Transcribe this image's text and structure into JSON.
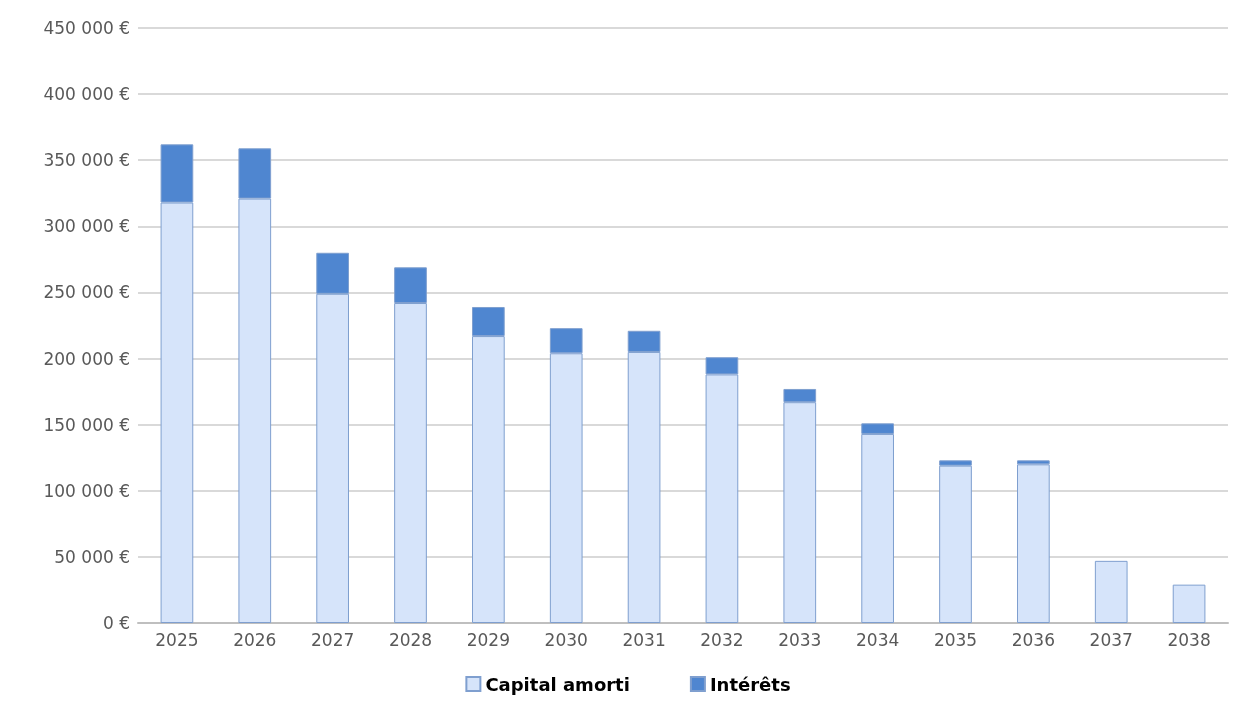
{
  "chart_data": {
    "type": "bar",
    "stacked": true,
    "categories": [
      "2025",
      "2026",
      "2027",
      "2028",
      "2029",
      "2030",
      "2031",
      "2032",
      "2033",
      "2034",
      "2035",
      "2036",
      "2037",
      "2038"
    ],
    "series": [
      {
        "name": "Capital amorti",
        "color": "#d6e4fa",
        "values": [
          318000,
          321000,
          249000,
          242000,
          217000,
          204000,
          205000,
          188000,
          167000,
          143000,
          119000,
          120000,
          47000,
          29000
        ]
      },
      {
        "name": "Intérêts",
        "color": "#4f86d0",
        "values": [
          44000,
          38000,
          31000,
          27000,
          22000,
          19000,
          16000,
          13000,
          10000,
          8000,
          4000,
          3000,
          0,
          0
        ]
      }
    ],
    "ylim": [
      0,
      450000
    ],
    "yticks": [
      {
        "value": 0,
        "label": "0 €"
      },
      {
        "value": 50000,
        "label": "50 000 €"
      },
      {
        "value": 100000,
        "label": "100 000 €"
      },
      {
        "value": 150000,
        "label": "150 000 €"
      },
      {
        "value": 200000,
        "label": "200 000 €"
      },
      {
        "value": 250000,
        "label": "250 000 €"
      },
      {
        "value": 300000,
        "label": "300 000 €"
      },
      {
        "value": 350000,
        "label": "350 000 €"
      },
      {
        "value": 400000,
        "label": "400 000 €"
      },
      {
        "value": 450000,
        "label": "450 000 €"
      }
    ],
    "grid": "y",
    "legend": "bottom"
  }
}
